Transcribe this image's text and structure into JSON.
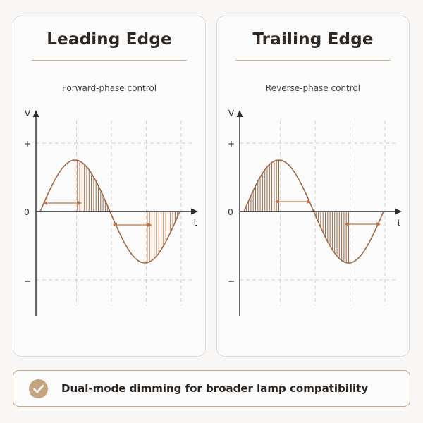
{
  "panels": [
    {
      "title": "Leading Edge",
      "subtitle": "Forward-phase control",
      "mode": "leading",
      "axis": {
        "y_label": "V",
        "x_label": "t",
        "plus": "+",
        "zero": "0",
        "minus": "−"
      }
    },
    {
      "title": "Trailing Edge",
      "subtitle": "Reverse-phase control",
      "mode": "trailing",
      "axis": {
        "y_label": "V",
        "x_label": "t",
        "plus": "+",
        "zero": "0",
        "minus": "−"
      }
    }
  ],
  "footer": {
    "text": "Dual-mode dimming for broader lamp compatibility",
    "icon": "check-circle-icon"
  },
  "colors": {
    "wave": "#a06a45",
    "hatch": "#a06a45",
    "arrow": "#b8754a",
    "axis": "#2b2b2b",
    "grid": "#d9cfc4",
    "accent": "#c9aa86",
    "badge": "#c4a37f"
  }
}
